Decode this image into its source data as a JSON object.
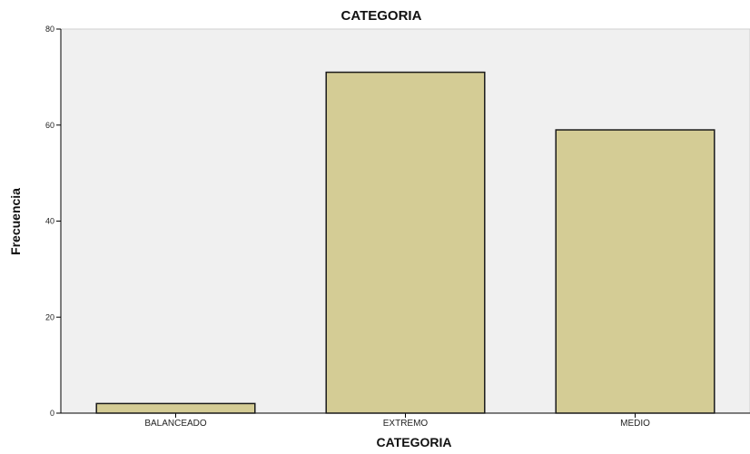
{
  "chart_data": {
    "type": "bar",
    "title": "CATEGORIA",
    "xlabel": "CATEGORIA",
    "ylabel": "Frecuencia",
    "categories": [
      "BALANCEADO",
      "EXTREMO",
      "MEDIO"
    ],
    "values": [
      2,
      71,
      59
    ],
    "ylim": [
      0,
      80
    ],
    "yticks": [
      "0",
      "20",
      "40",
      "60",
      "80"
    ],
    "grid": false,
    "legend": "none",
    "colors": {
      "bar_fill": "#d4cc95",
      "bar_stroke": "#1a1a1a",
      "plot_background": "#f0f0f0",
      "axis": "#000000"
    }
  }
}
